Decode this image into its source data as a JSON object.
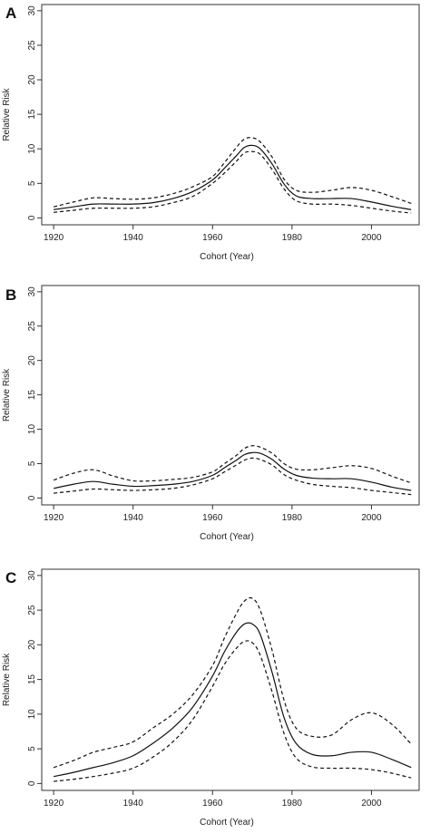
{
  "chart_data": [
    {
      "type": "line",
      "panel_label": "A",
      "xlabel": "Cohort (Year)",
      "ylabel": "Relative Risk",
      "xlim": [
        1917,
        2012
      ],
      "ylim": [
        0,
        30
      ],
      "xticks": [
        1920,
        1940,
        1960,
        1980,
        2000
      ],
      "yticks": [
        0,
        5,
        10,
        15,
        20,
        25,
        30
      ],
      "grid": false,
      "x": [
        1920,
        1925,
        1930,
        1935,
        1940,
        1945,
        1950,
        1955,
        1960,
        1963,
        1966,
        1968,
        1970,
        1972,
        1975,
        1978,
        1981,
        1985,
        1990,
        1995,
        2000,
        2005,
        2010
      ],
      "series": [
        {
          "role": "estimate",
          "style": "solid",
          "values": [
            1.2,
            1.6,
            2.0,
            2.0,
            2.0,
            2.2,
            2.8,
            3.8,
            5.5,
            7.2,
            9.0,
            10.2,
            10.5,
            10.0,
            7.8,
            4.9,
            3.2,
            2.8,
            2.8,
            2.8,
            2.3,
            1.7,
            1.2
          ]
        },
        {
          "role": "upper-ci",
          "style": "dashed",
          "values": [
            1.6,
            2.3,
            2.9,
            2.8,
            2.7,
            2.9,
            3.5,
            4.5,
            6.0,
            8.0,
            10.2,
            11.4,
            11.6,
            11.0,
            8.8,
            5.6,
            4.0,
            3.7,
            4.0,
            4.4,
            4.0,
            3.1,
            2.1
          ]
        },
        {
          "role": "lower-ci",
          "style": "dashed",
          "values": [
            0.8,
            1.1,
            1.4,
            1.4,
            1.4,
            1.6,
            2.2,
            3.1,
            5.0,
            6.5,
            8.2,
            9.4,
            9.6,
            9.2,
            7.0,
            4.2,
            2.5,
            2.0,
            2.0,
            1.8,
            1.4,
            1.0,
            0.7
          ]
        }
      ]
    },
    {
      "type": "line",
      "panel_label": "B",
      "xlabel": "Cohort (Year)",
      "ylabel": "Relative Risk",
      "xlim": [
        1917,
        2012
      ],
      "ylim": [
        0,
        30
      ],
      "xticks": [
        1920,
        1940,
        1960,
        1980,
        2000
      ],
      "yticks": [
        0,
        5,
        10,
        15,
        20,
        25,
        30
      ],
      "grid": false,
      "x": [
        1920,
        1925,
        1930,
        1935,
        1940,
        1945,
        1950,
        1955,
        1960,
        1963,
        1966,
        1968,
        1970,
        1972,
        1975,
        1978,
        1981,
        1985,
        1990,
        1995,
        2000,
        2005,
        2010
      ],
      "series": [
        {
          "role": "estimate",
          "style": "solid",
          "values": [
            1.4,
            2.0,
            2.4,
            2.0,
            1.7,
            1.8,
            2.0,
            2.4,
            3.3,
            4.4,
            5.5,
            6.3,
            6.6,
            6.5,
            5.6,
            4.2,
            3.3,
            2.9,
            2.8,
            2.8,
            2.3,
            1.6,
            1.1
          ]
        },
        {
          "role": "upper-ci",
          "style": "dashed",
          "values": [
            2.6,
            3.6,
            4.1,
            3.2,
            2.5,
            2.5,
            2.7,
            3.0,
            3.8,
            5.0,
            6.2,
            7.2,
            7.6,
            7.4,
            6.5,
            5.0,
            4.2,
            4.1,
            4.4,
            4.7,
            4.3,
            3.2,
            2.2
          ]
        },
        {
          "role": "lower-ci",
          "style": "dashed",
          "values": [
            0.7,
            1.0,
            1.3,
            1.2,
            1.1,
            1.2,
            1.4,
            1.9,
            2.8,
            3.8,
            4.8,
            5.5,
            5.8,
            5.6,
            4.8,
            3.4,
            2.6,
            2.0,
            1.7,
            1.5,
            1.1,
            0.8,
            0.5
          ]
        }
      ]
    },
    {
      "type": "line",
      "panel_label": "C",
      "xlabel": "Cohort (Year)",
      "ylabel": "Relative Risk",
      "xlim": [
        1917,
        2012
      ],
      "ylim": [
        0,
        30
      ],
      "xticks": [
        1920,
        1940,
        1960,
        1980,
        2000
      ],
      "yticks": [
        0,
        5,
        10,
        15,
        20,
        25,
        30
      ],
      "grid": false,
      "x": [
        1920,
        1925,
        1930,
        1935,
        1940,
        1945,
        1950,
        1955,
        1960,
        1963,
        1966,
        1968,
        1970,
        1972,
        1975,
        1978,
        1981,
        1985,
        1990,
        1995,
        2000,
        2005,
        2010
      ],
      "series": [
        {
          "role": "estimate",
          "style": "solid",
          "values": [
            1.0,
            1.6,
            2.3,
            3.0,
            4.0,
            5.8,
            8.0,
            11.0,
            15.5,
            19.0,
            21.8,
            23.0,
            23.0,
            21.5,
            16.0,
            9.5,
            5.8,
            4.2,
            4.0,
            4.5,
            4.5,
            3.5,
            2.3
          ]
        },
        {
          "role": "upper-ci",
          "style": "dashed",
          "values": [
            2.3,
            3.3,
            4.5,
            5.2,
            6.0,
            8.0,
            10.0,
            12.8,
            17.0,
            21.0,
            24.5,
            26.3,
            26.7,
            25.0,
            19.2,
            12.0,
            8.0,
            6.8,
            7.0,
            9.2,
            10.2,
            8.6,
            5.7
          ]
        },
        {
          "role": "lower-ci",
          "style": "dashed",
          "values": [
            0.3,
            0.6,
            1.0,
            1.5,
            2.2,
            3.8,
            6.0,
            9.2,
            14.0,
            17.2,
            19.5,
            20.5,
            20.3,
            18.5,
            13.2,
            7.2,
            3.7,
            2.4,
            2.2,
            2.2,
            2.0,
            1.5,
            0.8
          ]
        }
      ]
    }
  ]
}
